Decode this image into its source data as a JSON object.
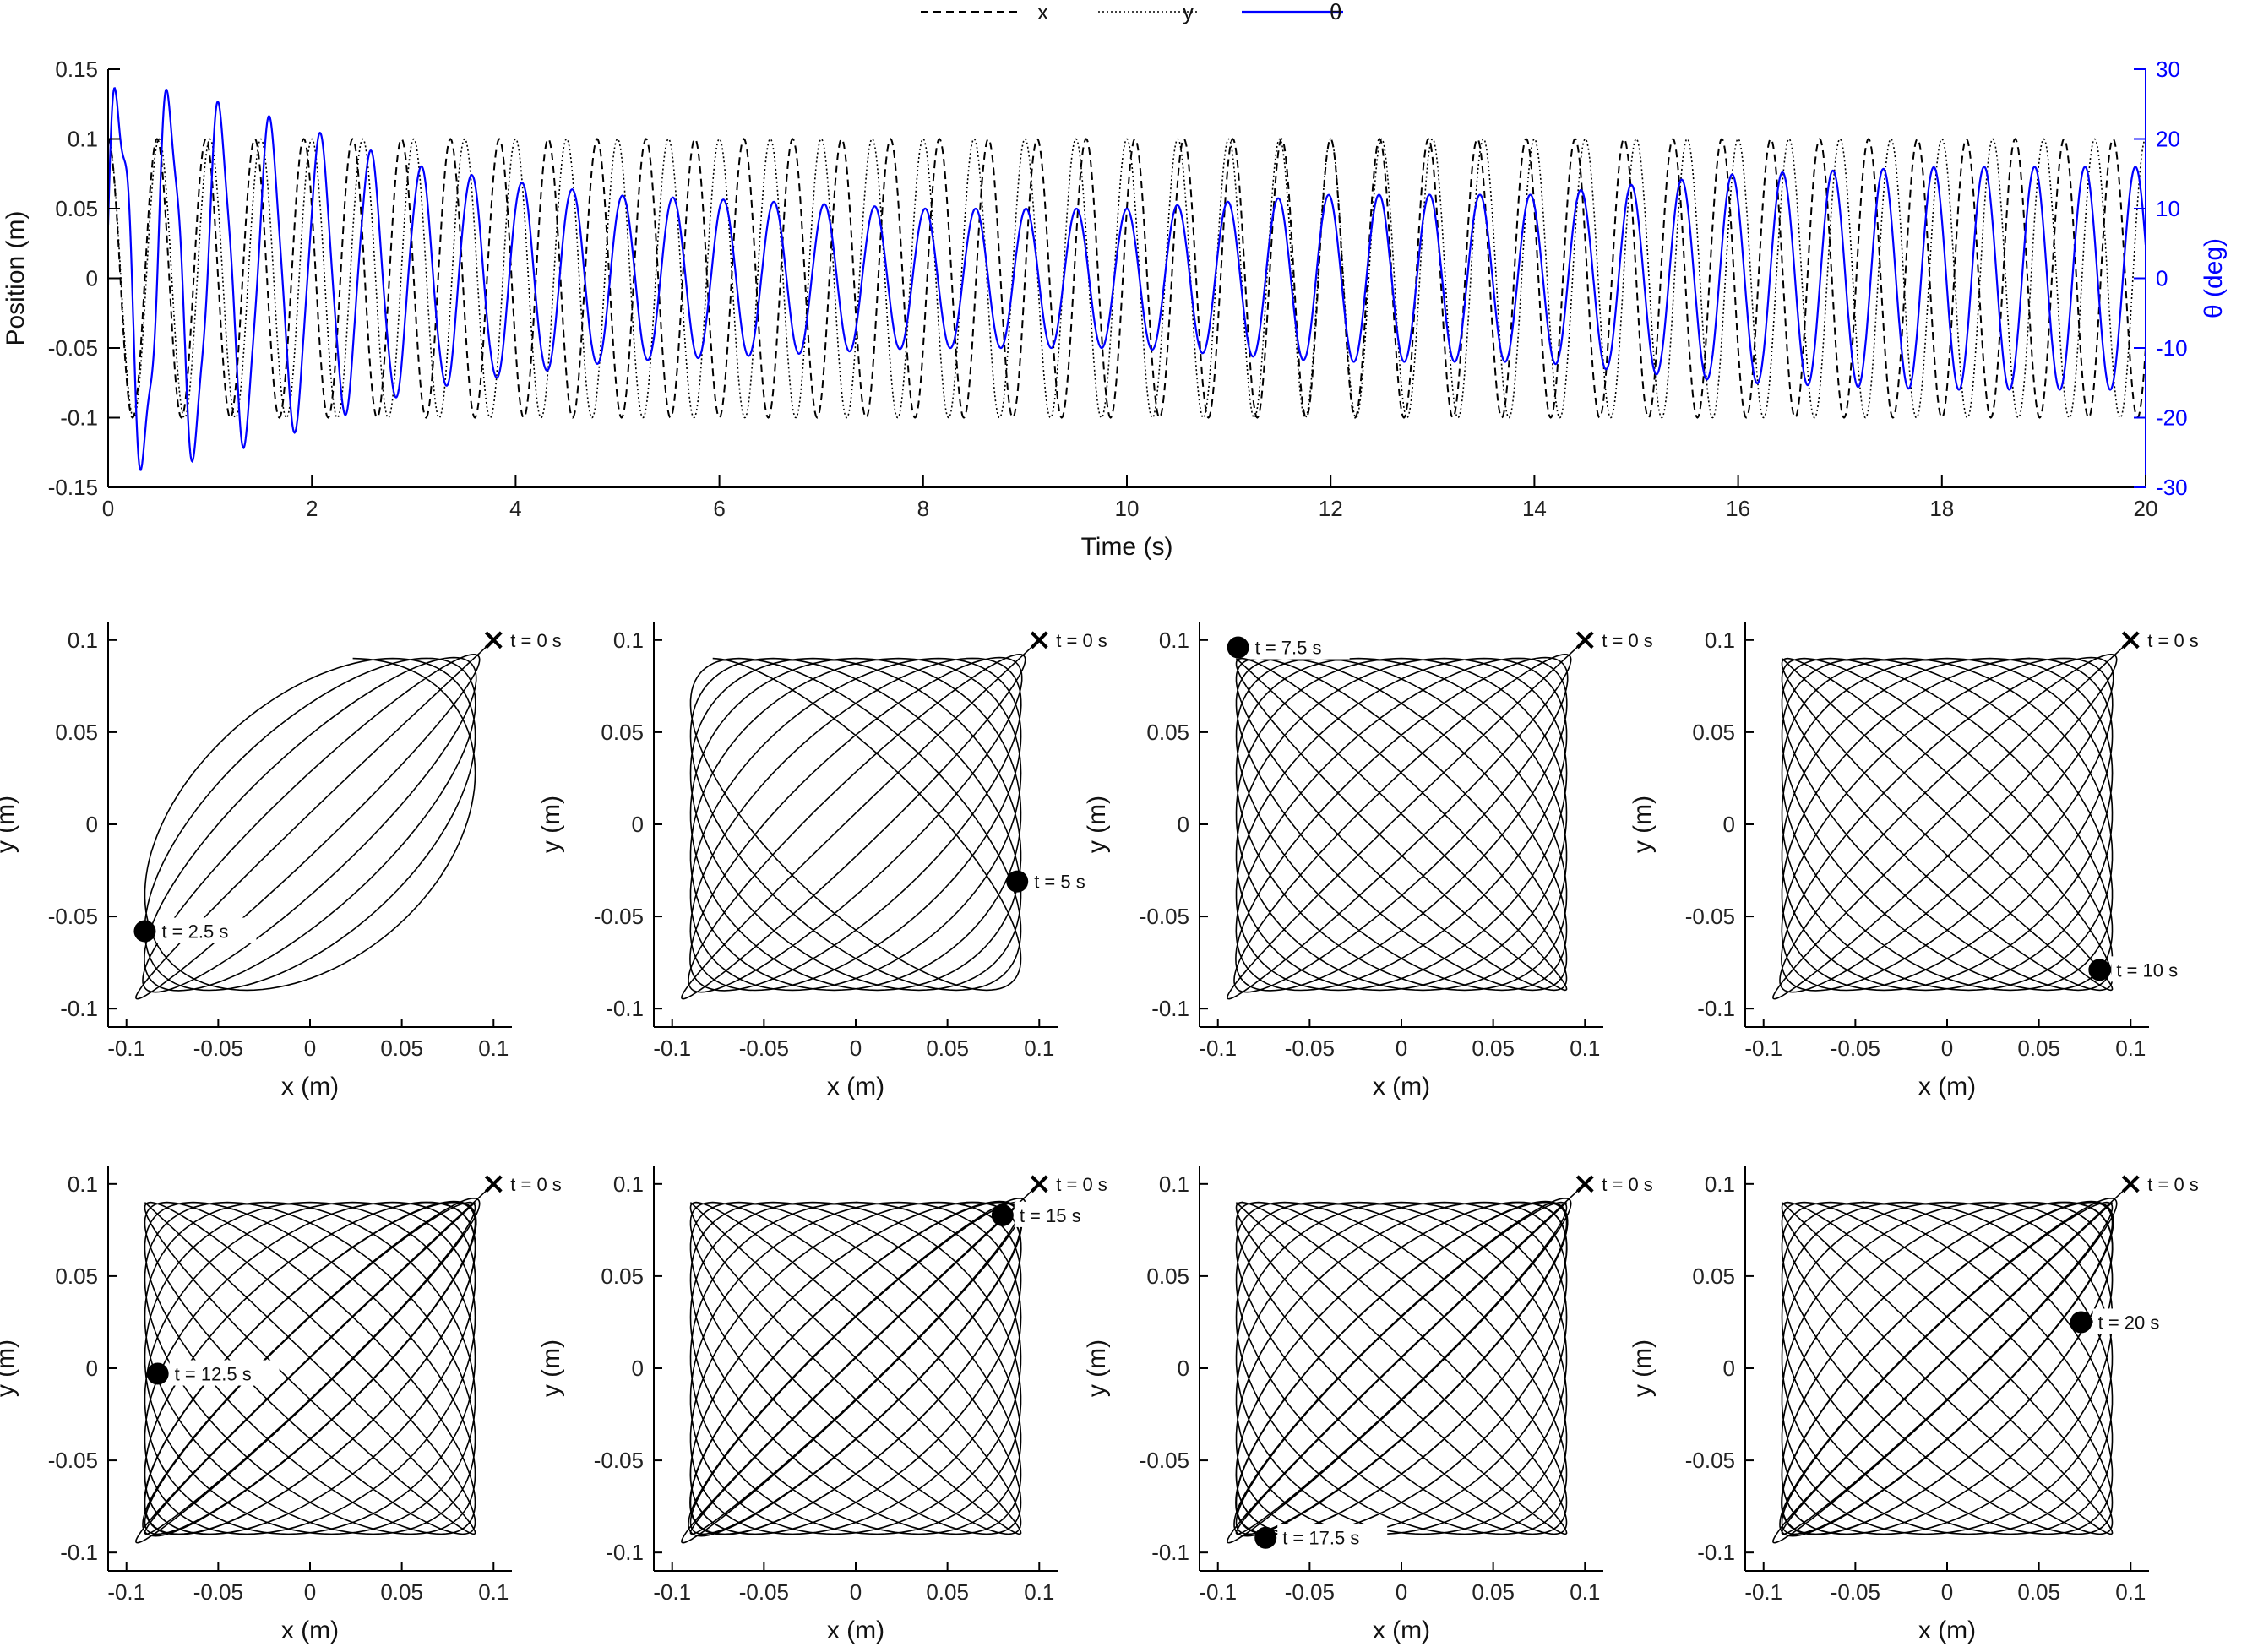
{
  "chart_data": [
    {
      "type": "line",
      "xlabel": "Time (s)",
      "ylabel": "Position (m)",
      "y2label": "θ (deg)",
      "xlim": [
        0,
        20
      ],
      "ylim": [
        -0.15,
        0.15
      ],
      "y2lim": [
        -30,
        30
      ],
      "xticks": [
        "0",
        "2",
        "4",
        "6",
        "8",
        "10",
        "12",
        "14",
        "16",
        "18",
        "20"
      ],
      "yticks": [
        "-0.15",
        "-0.1",
        "-0.05",
        "0",
        "0.05",
        "0.1",
        "0.15"
      ],
      "y2ticks": [
        "-30",
        "-20",
        "-10",
        "0",
        "10",
        "20",
        "30"
      ],
      "grid": false,
      "legend": "top-center",
      "legend_entries": [
        "x",
        "y",
        "θ"
      ],
      "series": [
        {
          "name": "x",
          "axis": "left",
          "style": "dashed",
          "color": "#000000",
          "amplitude": 0.1,
          "period_s": 0.48,
          "phase_start": "max at t=0",
          "note_values": "oscillates between -0.1 and 0.1"
        },
        {
          "name": "y",
          "axis": "left",
          "style": "dotted",
          "color": "#000000",
          "amplitude": 0.1,
          "period_s": 0.5,
          "phase_start": "max at t=0",
          "note_values": "oscillates between -0.1 and 0.1"
        },
        {
          "name": "θ",
          "axis": "right",
          "style": "solid",
          "color": "#0000ff",
          "envelope_deg": [
            {
              "t": 0.4,
              "amp": 26
            },
            {
              "t": 1.8,
              "amp": 21
            },
            {
              "t": 3,
              "amp": 16
            },
            {
              "t": 5,
              "amp": 12
            },
            {
              "t": 8,
              "amp": 10
            },
            {
              "t": 10,
              "amp": 10
            },
            {
              "t": 12,
              "amp": 12
            },
            {
              "t": 14,
              "amp": 12
            },
            {
              "t": 16,
              "amp": 15
            },
            {
              "t": 18,
              "amp": 16
            },
            {
              "t": 20,
              "amp": 16
            }
          ]
        }
      ]
    },
    {
      "type": "line",
      "panels": [
        {
          "label": "t = 2.5 s",
          "t_end": 2.5,
          "end_point": [
            -0.09,
            -0.058
          ]
        },
        {
          "label": "t = 5 s",
          "t_end": 5,
          "end_point": [
            0.088,
            -0.031
          ]
        },
        {
          "label": "t = 7.5 s",
          "t_end": 7.5,
          "end_point": [
            -0.089,
            0.096
          ]
        },
        {
          "label": "t = 10 s",
          "t_end": 10,
          "end_point": [
            0.083,
            -0.079
          ]
        },
        {
          "label": "t = 12.5 s",
          "t_end": 12.5,
          "end_point": [
            -0.083,
            -0.003
          ]
        },
        {
          "label": "t = 15 s",
          "t_end": 15,
          "end_point": [
            0.08,
            0.083
          ]
        },
        {
          "label": "t = 17.5 s",
          "t_end": 17.5,
          "end_point": [
            -0.074,
            -0.092
          ]
        },
        {
          "label": "t = 20 s",
          "t_end": 20,
          "end_point": [
            0.073,
            0.025
          ]
        }
      ],
      "start_label": "t = 0 s",
      "start_point": [
        0.1,
        0.1
      ],
      "xlabel": "x (m)",
      "ylabel": "y (m)",
      "xlim": [
        -0.11,
        0.11
      ],
      "ylim": [
        -0.11,
        0.11
      ],
      "xticks": [
        "-0.1",
        "-0.05",
        "0",
        "0.05",
        "0.1"
      ],
      "yticks": [
        "-0.1",
        "-0.05",
        "0",
        "0.05",
        "0.1"
      ],
      "grid": false
    }
  ]
}
